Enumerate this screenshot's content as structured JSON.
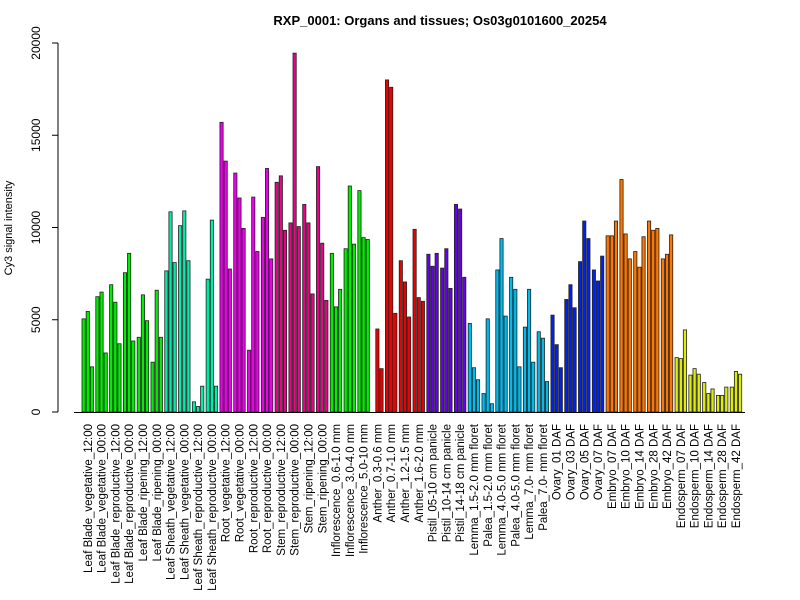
{
  "chart_data": {
    "type": "bar",
    "title": "RXP_0001: Organs and tissues; Os03g0101600_20254",
    "xlabel": "",
    "ylabel": "Cy3 signal intensity",
    "ylim": [
      0,
      20000
    ],
    "yticks": [
      0,
      5000,
      10000,
      15000,
      20000
    ],
    "grid": false,
    "legend": "none",
    "bars_per_category": 3,
    "categories": [
      {
        "label": "Leaf Blade_vegetative_12:00",
        "color": "#00ee00",
        "values": [
          5050,
          5450,
          2450
        ]
      },
      {
        "label": "Leaf Blade_vegetative_00:00",
        "color": "#00ee00",
        "values": [
          6250,
          6500,
          3200
        ]
      },
      {
        "label": "Leaf Blade_reproductive_12:00",
        "color": "#00ee00",
        "values": [
          6900,
          5950,
          3700
        ]
      },
      {
        "label": "Leaf Blade_reproductive_00:00",
        "color": "#00ee00",
        "values": [
          7550,
          8600,
          3850
        ]
      },
      {
        "label": "Leaf Blade_ripening_12:00",
        "color": "#00ee00",
        "values": [
          4050,
          6350,
          4950
        ]
      },
      {
        "label": "Leaf Blade_ripening_00:00",
        "color": "#00ee00",
        "values": [
          2700,
          6600,
          4050
        ]
      },
      {
        "label": "Leaf Sheath_vegetative_12:00",
        "color": "#00eeaa",
        "values": [
          7650,
          10850,
          8100
        ]
      },
      {
        "label": "Leaf Sheath_vegetative_00:00",
        "color": "#00eeaa",
        "values": [
          10100,
          10900,
          8200
        ]
      },
      {
        "label": "Leaf Sheath_reproductive_12:00",
        "color": "#00eeaa",
        "values": [
          550,
          300,
          1400
        ]
      },
      {
        "label": "Leaf Sheath_reproductive_00:00",
        "color": "#00eeaa",
        "values": [
          7200,
          10400,
          1400
        ]
      },
      {
        "label": "Root_vegetative_12:00",
        "color": "#ee00ee",
        "values": [
          15700,
          13600,
          7750
        ]
      },
      {
        "label": "Root_vegetative_00:00",
        "color": "#ee00ee",
        "values": [
          12950,
          11600,
          9950
        ]
      },
      {
        "label": "Root_reproductive_12:00",
        "color": "#ee00ee",
        "values": [
          3350,
          11650,
          8700
        ]
      },
      {
        "label": "Root_reproductive_00:00",
        "color": "#ee00ee",
        "values": [
          10550,
          13200,
          8300
        ]
      },
      {
        "label": "Stem_reproductive_12:00",
        "color": "#ee0088",
        "values": [
          12450,
          12800,
          9850
        ]
      },
      {
        "label": "Stem_reproductive_00:00",
        "color": "#ee0088",
        "values": [
          10250,
          19450,
          10050
        ]
      },
      {
        "label": "Stem_ripening_12:00",
        "color": "#ee0088",
        "values": [
          11250,
          10250,
          6400
        ]
      },
      {
        "label": "Stem_ripening_00:00",
        "color": "#ee0088",
        "values": [
          13300,
          9150,
          6050
        ]
      },
      {
        "label": "Inflorescence_0.6-1.0 mm",
        "color": "#00ee00",
        "values": [
          8600,
          5700,
          6650
        ]
      },
      {
        "label": "Inflorescence_3.0-4.0 mm",
        "color": "#00ee00",
        "values": [
          8850,
          12250,
          9100
        ]
      },
      {
        "label": "Inflorescence_5.0-10 mm",
        "color": "#00ee00",
        "values": [
          12000,
          9450,
          9350
        ]
      },
      {
        "label": "Anther_0.3-0.6 mm",
        "color": "#ee0000",
        "values": [
          0,
          4500,
          2350
        ]
      },
      {
        "label": "Anther_0.7-1.0 mm",
        "color": "#ee0000",
        "values": [
          18000,
          17600,
          5350
        ]
      },
      {
        "label": "Anther_1.2-1.5 mm",
        "color": "#ee0000",
        "values": [
          8200,
          7050,
          5150
        ]
      },
      {
        "label": "Anther_1.6-2.0 mm",
        "color": "#ee0000",
        "values": [
          9900,
          6200,
          6000
        ]
      },
      {
        "label": "Pistil_05-10 cm panicle",
        "color": "#6600ee",
        "values": [
          8550,
          7900,
          8600
        ]
      },
      {
        "label": "Pistil_10-14 cm panicle",
        "color": "#6600ee",
        "values": [
          7800,
          8850,
          6700
        ]
      },
      {
        "label": "Pistil_14-18 cm panicle",
        "color": "#6600ee",
        "values": [
          11250,
          11000,
          7300
        ]
      },
      {
        "label": "Lemma_1.5-2.0 mm floret",
        "color": "#00bbee",
        "values": [
          4800,
          2400,
          1750
        ]
      },
      {
        "label": "Palea_1.5-2.0 mm floret",
        "color": "#00bbee",
        "values": [
          1000,
          5050,
          450
        ]
      },
      {
        "label": "Lemma_4.0-5.0 mm floret",
        "color": "#00bbee",
        "values": [
          7700,
          9400,
          5200
        ]
      },
      {
        "label": "Palea_4.0-5.0 mm floret",
        "color": "#00bbee",
        "values": [
          7300,
          6650,
          2450
        ]
      },
      {
        "label": "Lemma_7.0- mm floret",
        "color": "#00bbee",
        "values": [
          4600,
          6650,
          2700
        ]
      },
      {
        "label": "Palea_7.0- mm floret",
        "color": "#00bbee",
        "values": [
          4350,
          4000,
          1650
        ]
      },
      {
        "label": "Ovary_01 DAF",
        "color": "#0022ee",
        "values": [
          5250,
          3650,
          2400
        ]
      },
      {
        "label": "Ovary_03 DAF",
        "color": "#0022ee",
        "values": [
          6100,
          6900,
          5650
        ]
      },
      {
        "label": "Ovary_05 DAF",
        "color": "#0022ee",
        "values": [
          8150,
          10350,
          9400
        ]
      },
      {
        "label": "Ovary_07 DAF",
        "color": "#0022ee",
        "values": [
          7700,
          7100,
          8450
        ]
      },
      {
        "label": "Embryo_07 DAF",
        "color": "#ff7700",
        "values": [
          9550,
          9550,
          10350
        ]
      },
      {
        "label": "Embryo_10 DAF",
        "color": "#ff7700",
        "values": [
          12600,
          9650,
          8300
        ]
      },
      {
        "label": "Embryo_14 DAF",
        "color": "#ff7700",
        "values": [
          8700,
          7850,
          9500
        ]
      },
      {
        "label": "Embryo_28 DAF",
        "color": "#ff7700",
        "values": [
          10350,
          9850,
          9950
        ]
      },
      {
        "label": "Embryo_42 DAF",
        "color": "#ff7700",
        "values": [
          8300,
          8550,
          9600
        ]
      },
      {
        "label": "Endosperm_07 DAF",
        "color": "#ddee00",
        "values": [
          2950,
          2900,
          4450
        ]
      },
      {
        "label": "Endosperm_10 DAF",
        "color": "#ddee00",
        "values": [
          2000,
          2350,
          2050
        ]
      },
      {
        "label": "Endosperm_14 DAF",
        "color": "#ddee00",
        "values": [
          1600,
          1000,
          1250
        ]
      },
      {
        "label": "Endosperm_28 DAF",
        "color": "#ddee00",
        "values": [
          900,
          900,
          1350
        ]
      },
      {
        "label": "Endosperm_42 DAF",
        "color": "#ddee00",
        "values": [
          1350,
          2200,
          2050
        ]
      }
    ]
  }
}
